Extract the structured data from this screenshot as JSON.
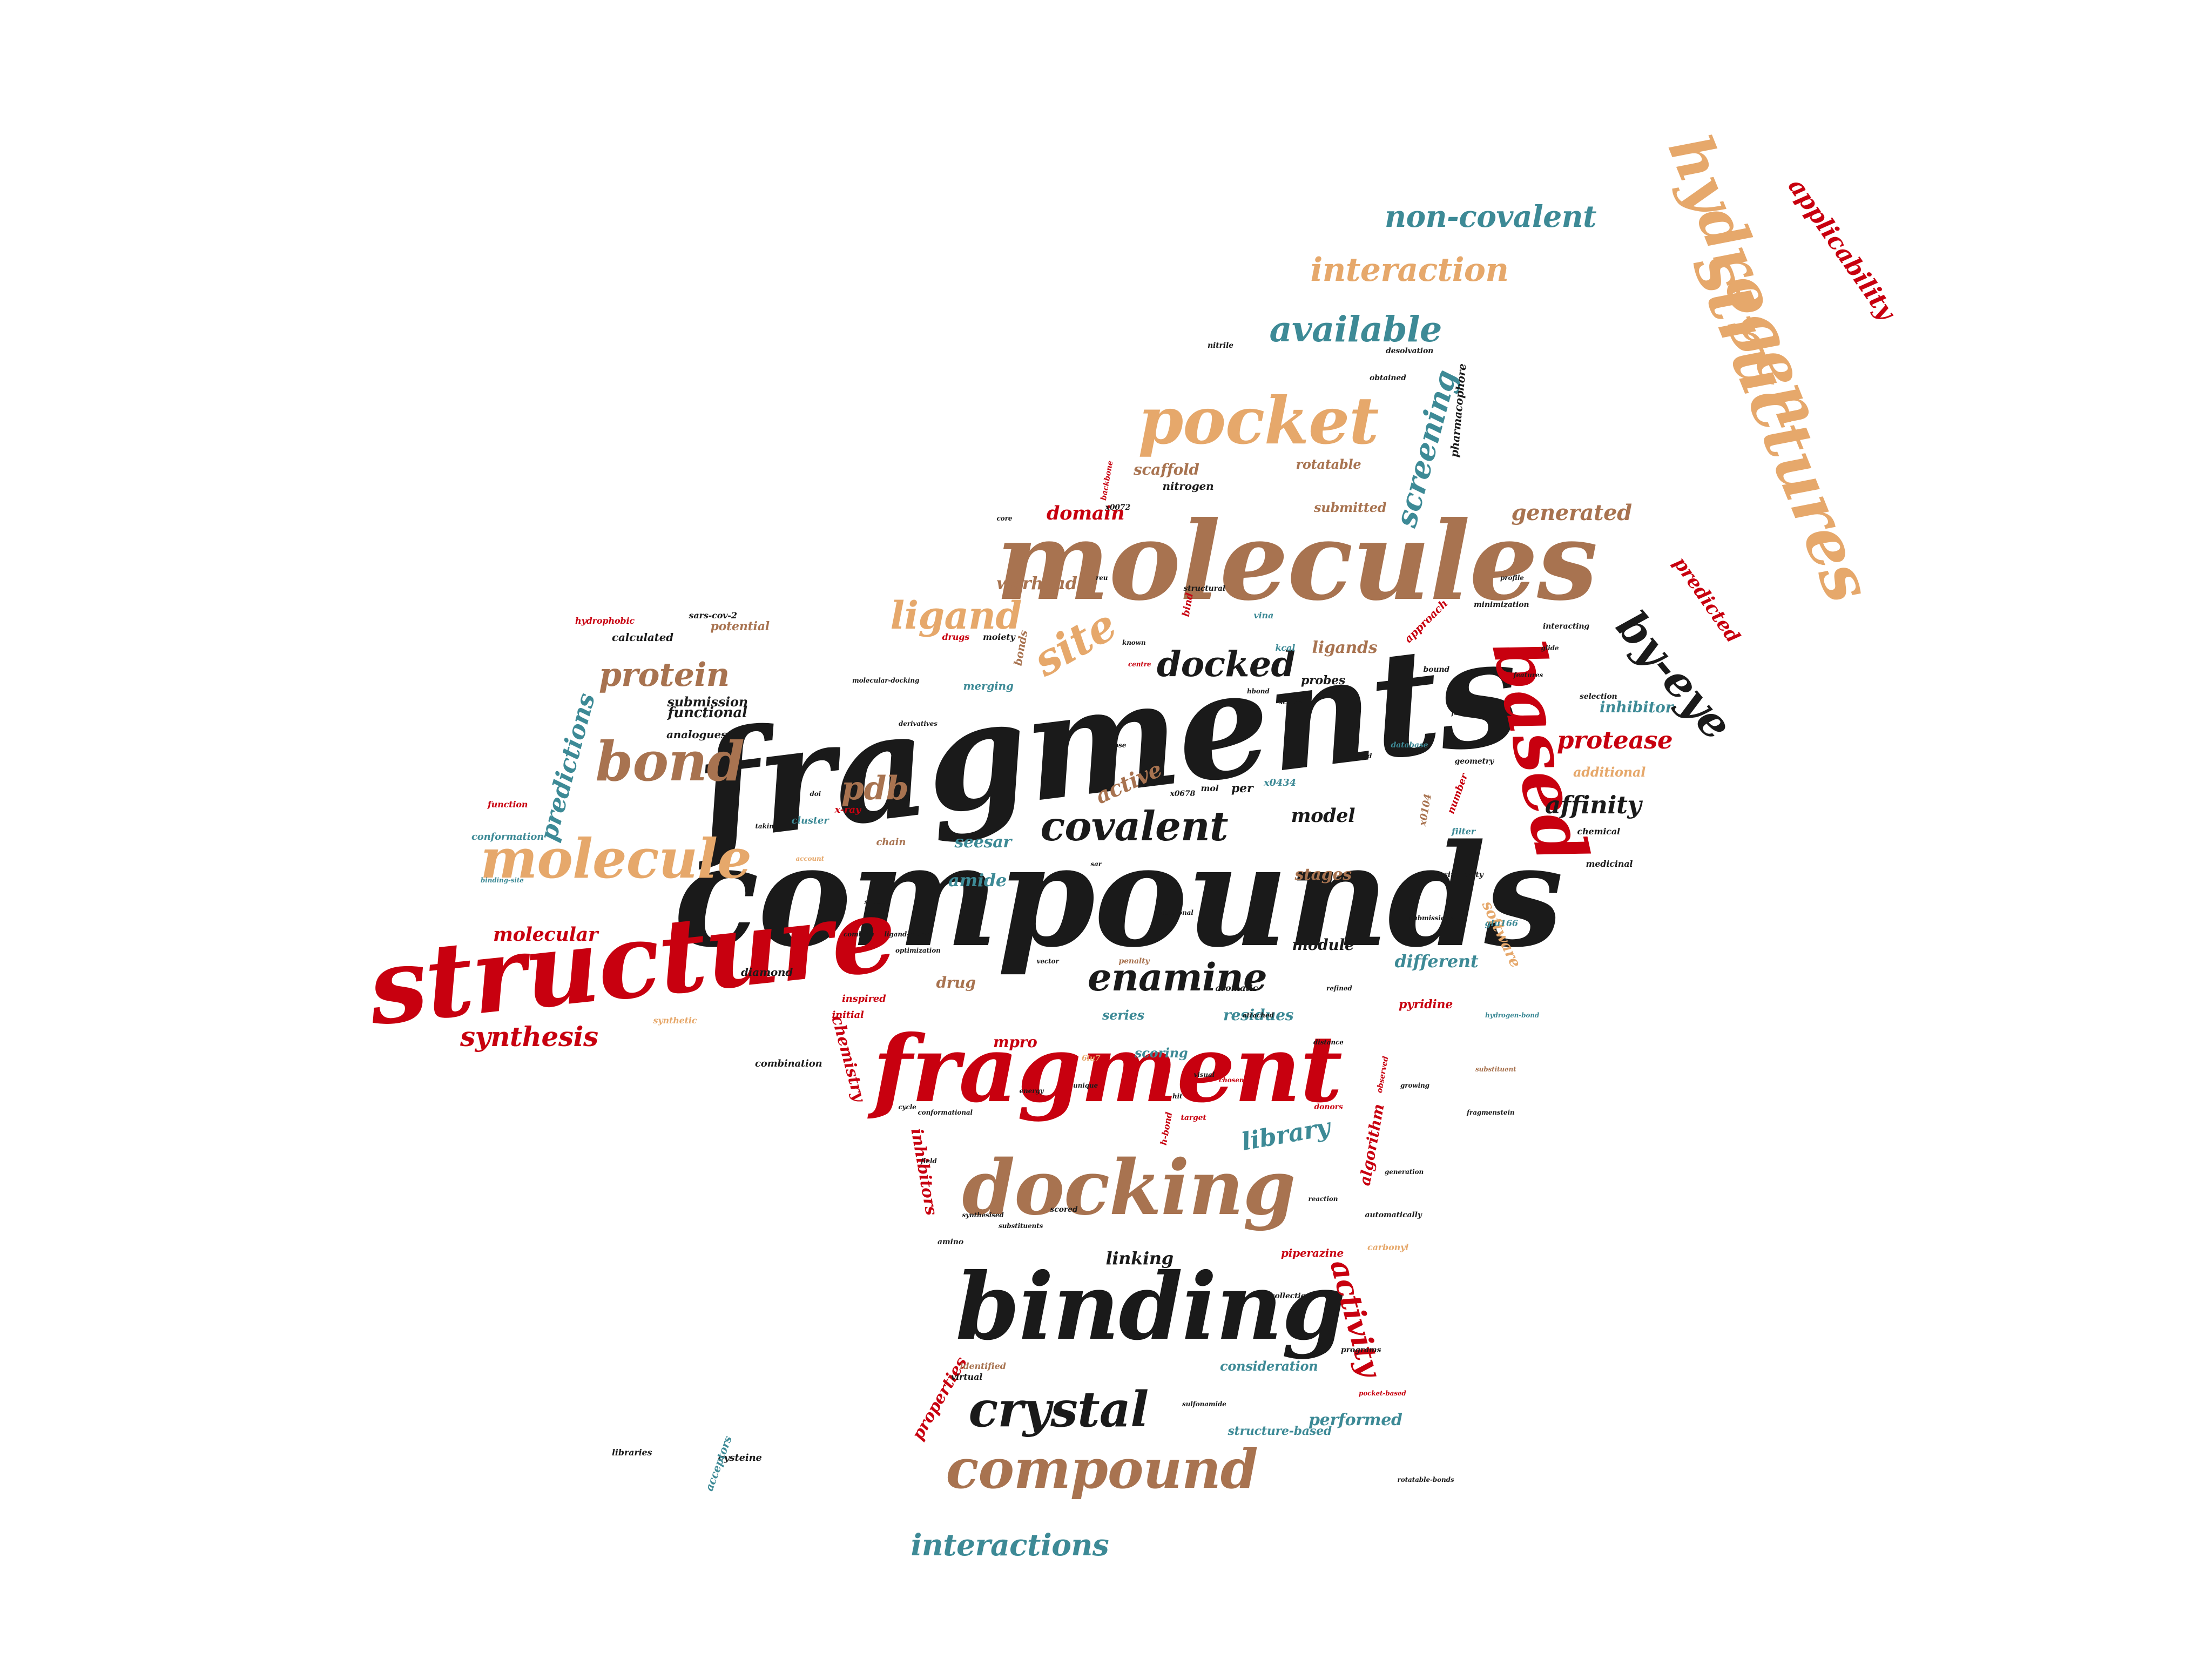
{
  "palette": {
    "black": "#1a1a1a",
    "red": "#c8000f",
    "brown": "#a87350",
    "tan": "#e6a86b",
    "teal": "#3d8a96"
  },
  "words": [
    {
      "text": "fragments",
      "color": "black"
    },
    {
      "text": "compounds",
      "color": "black"
    },
    {
      "text": "molecules",
      "color": "brown"
    },
    {
      "text": "fragment",
      "color": "red"
    },
    {
      "text": "structure",
      "color": "red"
    },
    {
      "text": "docking",
      "color": "brown"
    },
    {
      "text": "binding",
      "color": "black"
    },
    {
      "text": "structures",
      "color": "tan"
    },
    {
      "text": "hydrogen",
      "color": "tan"
    },
    {
      "text": "based",
      "color": "red"
    },
    {
      "text": "pocket",
      "color": "tan"
    },
    {
      "text": "compound",
      "color": "brown"
    },
    {
      "text": "molecule",
      "color": "tan"
    },
    {
      "text": "bond",
      "color": "brown"
    },
    {
      "text": "crystal",
      "color": "black"
    },
    {
      "text": "by-eye",
      "color": "black"
    },
    {
      "text": "covalent",
      "color": "black"
    },
    {
      "text": "enamine",
      "color": "black"
    },
    {
      "text": "docked",
      "color": "black"
    },
    {
      "text": "site",
      "color": "tan"
    },
    {
      "text": "ligand",
      "color": "tan"
    },
    {
      "text": "protein",
      "color": "brown"
    },
    {
      "text": "pdb",
      "color": "brown"
    },
    {
      "text": "available",
      "color": "teal"
    },
    {
      "text": "interaction",
      "color": "tan"
    },
    {
      "text": "non-covalent",
      "color": "teal"
    },
    {
      "text": "interactions",
      "color": "teal"
    },
    {
      "text": "screening",
      "color": "teal"
    },
    {
      "text": "applicability",
      "color": "red"
    },
    {
      "text": "activity",
      "color": "red"
    },
    {
      "text": "synthesis",
      "color": "red"
    },
    {
      "text": "protease",
      "color": "red"
    },
    {
      "text": "affinity",
      "color": "black"
    },
    {
      "text": "library",
      "color": "teal"
    },
    {
      "text": "predictions",
      "color": "teal"
    },
    {
      "text": "molecular",
      "color": "red"
    },
    {
      "text": "generated",
      "color": "brown"
    },
    {
      "text": "predicted",
      "color": "red"
    },
    {
      "text": "domain",
      "color": "red"
    },
    {
      "text": "warhead",
      "color": "brown"
    },
    {
      "text": "ligands",
      "color": "brown"
    },
    {
      "text": "model",
      "color": "black"
    },
    {
      "text": "active",
      "color": "brown"
    },
    {
      "text": "stages",
      "color": "brown"
    },
    {
      "text": "amide",
      "color": "teal"
    },
    {
      "text": "seesar",
      "color": "teal"
    },
    {
      "text": "different",
      "color": "teal"
    },
    {
      "text": "module",
      "color": "black"
    },
    {
      "text": "linking",
      "color": "black"
    },
    {
      "text": "inhibitor",
      "color": "teal"
    },
    {
      "text": "software",
      "color": "tan"
    },
    {
      "text": "performed",
      "color": "teal"
    },
    {
      "text": "properties",
      "color": "red"
    },
    {
      "text": "inhibitors",
      "color": "red"
    },
    {
      "text": "residues",
      "color": "teal"
    },
    {
      "text": "chemistry",
      "color": "red"
    },
    {
      "text": "scoring",
      "color": "teal"
    },
    {
      "text": "series",
      "color": "teal"
    },
    {
      "text": "mpro",
      "color": "red"
    },
    {
      "text": "drug",
      "color": "brown"
    },
    {
      "text": "algorithm",
      "color": "red"
    },
    {
      "text": "pyridine",
      "color": "red"
    },
    {
      "text": "additional",
      "color": "tan"
    },
    {
      "text": "functional",
      "color": "black"
    },
    {
      "text": "submission",
      "color": "black"
    },
    {
      "text": "consideration",
      "color": "teal"
    },
    {
      "text": "structure-based",
      "color": "teal"
    },
    {
      "text": "scaffold",
      "color": "brown"
    },
    {
      "text": "rotatable",
      "color": "brown"
    },
    {
      "text": "submitted",
      "color": "brown"
    },
    {
      "text": "pharmacophore",
      "color": "black"
    },
    {
      "text": "nitrogen",
      "color": "black"
    },
    {
      "text": "potential",
      "color": "brown"
    },
    {
      "text": "calculated",
      "color": "black"
    },
    {
      "text": "analogues",
      "color": "black"
    },
    {
      "text": "conformation",
      "color": "teal"
    },
    {
      "text": "function",
      "color": "red"
    },
    {
      "text": "hydrophobic",
      "color": "red"
    },
    {
      "text": "sars-cov-2",
      "color": "black"
    },
    {
      "text": "inspired",
      "color": "red"
    },
    {
      "text": "initial",
      "color": "red"
    },
    {
      "text": "cysteine",
      "color": "black"
    },
    {
      "text": "diamond",
      "color": "black"
    },
    {
      "text": "acceptors",
      "color": "teal"
    },
    {
      "text": "libraries",
      "color": "black"
    },
    {
      "text": "synthetic",
      "color": "tan"
    },
    {
      "text": "combination",
      "color": "black"
    },
    {
      "text": "identified",
      "color": "brown"
    },
    {
      "text": "virtual",
      "color": "black"
    },
    {
      "text": "x-ray",
      "color": "red"
    },
    {
      "text": "cluster",
      "color": "teal"
    },
    {
      "text": "chain",
      "color": "brown"
    },
    {
      "text": "merging",
      "color": "teal"
    },
    {
      "text": "probes",
      "color": "black"
    },
    {
      "text": "approach",
      "color": "red"
    },
    {
      "text": "bonds",
      "color": "brown"
    },
    {
      "text": "per",
      "color": "black"
    },
    {
      "text": "x0434",
      "color": "teal"
    },
    {
      "text": "x0104",
      "color": "brown"
    },
    {
      "text": "number",
      "color": "red"
    },
    {
      "text": "filter",
      "color": "teal"
    },
    {
      "text": "chemical",
      "color": "black"
    },
    {
      "text": "medicinal",
      "color": "black"
    },
    {
      "text": "moiety",
      "color": "black"
    },
    {
      "text": "drugs",
      "color": "red"
    },
    {
      "text": "kcal",
      "color": "teal"
    },
    {
      "text": "mol",
      "color": "black"
    },
    {
      "text": "bind",
      "color": "red"
    },
    {
      "text": "vina",
      "color": "teal"
    },
    {
      "text": "obtained",
      "color": "black"
    },
    {
      "text": "desolvation",
      "color": "black"
    },
    {
      "text": "nitrile",
      "color": "black"
    },
    {
      "text": "selection",
      "color": "black"
    },
    {
      "text": "interacting",
      "color": "black"
    },
    {
      "text": "bound",
      "color": "black"
    },
    {
      "text": "glu166",
      "color": "teal"
    },
    {
      "text": "piperazine",
      "color": "red"
    },
    {
      "text": "carbonyl",
      "color": "tan"
    },
    {
      "text": "automatically",
      "color": "black"
    },
    {
      "text": "observed",
      "color": "red"
    },
    {
      "text": "donors",
      "color": "red"
    },
    {
      "text": "target",
      "color": "red"
    },
    {
      "text": "h-bond",
      "color": "red"
    },
    {
      "text": "aromatic",
      "color": "black"
    },
    {
      "text": "6lu7",
      "color": "tan"
    },
    {
      "text": "database",
      "color": "teal"
    },
    {
      "text": "programs",
      "color": "black"
    },
    {
      "text": "collection",
      "color": "black"
    },
    {
      "text": "backbone",
      "color": "red"
    },
    {
      "text": "x0072",
      "color": "black"
    },
    {
      "text": "core",
      "color": "black"
    },
    {
      "text": "reu",
      "color": "black"
    },
    {
      "text": "structural",
      "color": "black"
    },
    {
      "text": "known",
      "color": "black"
    },
    {
      "text": "centre",
      "color": "red"
    },
    {
      "text": "x0678",
      "color": "black"
    },
    {
      "text": "sar",
      "color": "black"
    },
    {
      "text": "torsional",
      "color": "black"
    },
    {
      "text": "attached",
      "color": "black"
    },
    {
      "text": "distance",
      "color": "black"
    },
    {
      "text": "geometry",
      "color": "black"
    },
    {
      "text": "similarity",
      "color": "black"
    },
    {
      "text": "substituent",
      "color": "brown"
    },
    {
      "text": "penalty",
      "color": "brown"
    },
    {
      "text": "scored",
      "color": "black"
    },
    {
      "text": "derivatives",
      "color": "black"
    },
    {
      "text": "reaction",
      "color": "black"
    },
    {
      "text": "substituents",
      "color": "black"
    },
    {
      "text": "hydrogen-bond",
      "color": "teal"
    },
    {
      "text": "submissions",
      "color": "black"
    },
    {
      "text": "ligand-based",
      "color": "black"
    },
    {
      "text": "optimization",
      "color": "black"
    },
    {
      "text": "account",
      "color": "tan"
    },
    {
      "text": "taking",
      "color": "black"
    },
    {
      "text": "binding-site",
      "color": "teal"
    },
    {
      "text": "fast",
      "color": "black"
    },
    {
      "text": "minimization",
      "color": "black"
    },
    {
      "text": "profile",
      "color": "black"
    },
    {
      "text": "pose",
      "color": "black"
    },
    {
      "text": "conformational",
      "color": "black"
    },
    {
      "text": "field",
      "color": "black"
    },
    {
      "text": "chosen",
      "color": "red"
    },
    {
      "text": "energy",
      "color": "black"
    },
    {
      "text": "hbond",
      "color": "black"
    },
    {
      "text": "generation",
      "color": "black"
    },
    {
      "text": "synthesised",
      "color": "black"
    },
    {
      "text": "amino",
      "color": "black"
    },
    {
      "text": "sulfonamide",
      "color": "black"
    },
    {
      "text": "rotatable-bonds",
      "color": "black"
    },
    {
      "text": "doi",
      "color": "black"
    },
    {
      "text": "shape",
      "color": "black"
    },
    {
      "text": "unique",
      "color": "black"
    },
    {
      "text": "pocket-based",
      "color": "red"
    },
    {
      "text": "features",
      "color": "black"
    },
    {
      "text": "glide",
      "color": "black"
    },
    {
      "text": "visual",
      "color": "black"
    },
    {
      "text": "cycle",
      "color": "black"
    },
    {
      "text": "refined",
      "color": "black"
    },
    {
      "text": "hit",
      "color": "black"
    },
    {
      "text": "vector",
      "color": "black"
    },
    {
      "text": "combine",
      "color": "black"
    },
    {
      "text": "growing",
      "color": "black"
    },
    {
      "text": "tested",
      "color": "black"
    },
    {
      "text": "molecular-docking",
      "color": "black"
    },
    {
      "text": "xchem",
      "color": "black"
    },
    {
      "text": "fragmenstein",
      "color": "black"
    }
  ]
}
